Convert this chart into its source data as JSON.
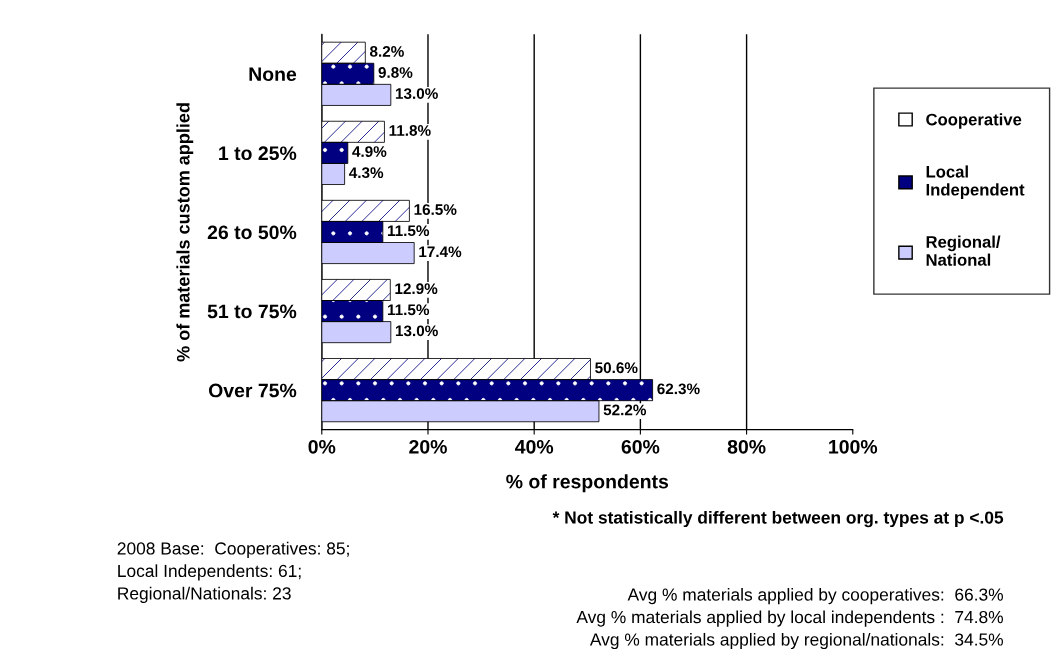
{
  "chart_data": {
    "type": "bar",
    "orientation": "horizontal",
    "xlabel": "% of respondents",
    "ylabel": "% of materials custom applied",
    "categories": [
      "None",
      "1 to 25%",
      "26 to 50%",
      "51 to 75%",
      "Over 75%"
    ],
    "series": [
      {
        "name": "Cooperative",
        "color": "#ffffff",
        "values": [
          8.2,
          11.8,
          16.5,
          12.9,
          50.6
        ],
        "value_labels": [
          "8.2%",
          "11.8%",
          "16.5%",
          "12.9%",
          "50.6%"
        ]
      },
      {
        "name": "Local Independent",
        "color": "#000080",
        "values": [
          9.8,
          4.9,
          11.5,
          11.5,
          62.3
        ],
        "value_labels": [
          "9.8%",
          "4.9%",
          "11.5%",
          "11.5%",
          "62.3%"
        ]
      },
      {
        "name": "Regional/ National",
        "color": "#ccccff",
        "values": [
          13.0,
          4.3,
          17.4,
          13.0,
          52.2
        ],
        "value_labels": [
          "13.0%",
          "4.3%",
          "17.4%",
          "13.0%",
          "52.2%"
        ]
      }
    ],
    "xlim": [
      0,
      100
    ],
    "xticks": [
      {
        "value": 0,
        "label": "0%"
      },
      {
        "value": 20,
        "label": "20%"
      },
      {
        "value": 40,
        "label": "40%"
      },
      {
        "value": 60,
        "label": "60%"
      },
      {
        "value": 80,
        "label": "80%"
      },
      {
        "value": 100,
        "label": "100%"
      }
    ],
    "grid": "x",
    "legend": "right",
    "annotations": [
      "2008 Base:  Cooperatives: 85;\nLocal Independents: 61;\nRegional/Nationals: 23",
      "* Not statistically different between org. types at p <.05",
      "Avg % materials applied by cooperatives:  66.3%\nAvg % materials applied by local independents :  74.8%\nAvg % materials applied by regional/nationals:  34.5%"
    ]
  }
}
